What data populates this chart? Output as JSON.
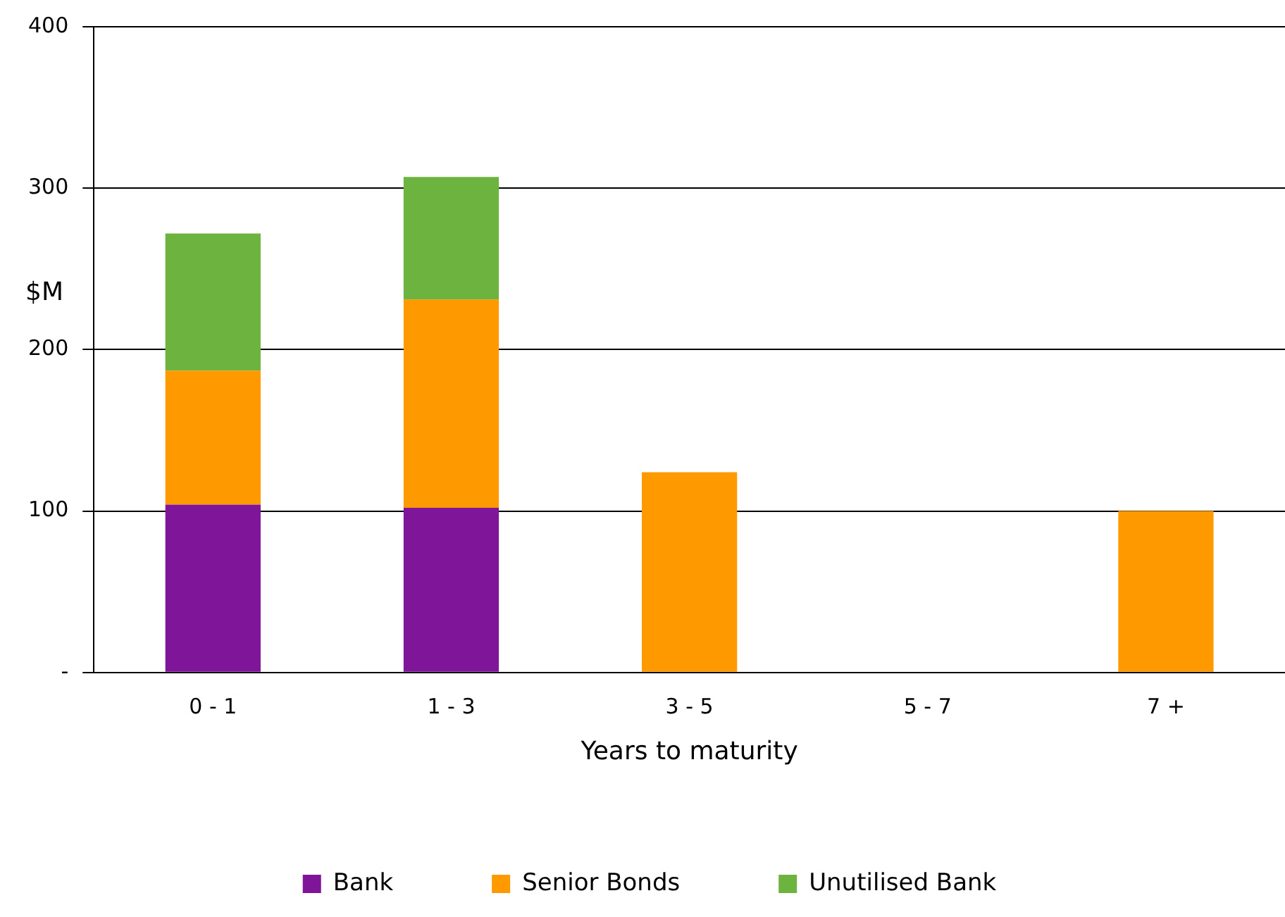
{
  "chart_data": {
    "type": "bar",
    "stacked": true,
    "xlabel": "Years to maturity",
    "ylabel": "$M",
    "categories": [
      "0 - 1",
      "1 - 3",
      "3 - 5",
      "5 - 7",
      "7 +"
    ],
    "series": [
      {
        "name": "Bank",
        "color": "#7f1599",
        "values": [
          104,
          102,
          null,
          null,
          null
        ]
      },
      {
        "name": "Senior Bonds",
        "color": "#ff9900",
        "values": [
          83,
          129,
          124,
          null,
          100
        ]
      },
      {
        "name": "Unutilised Bank",
        "color": "#6db33f",
        "values": [
          85,
          76,
          null,
          null,
          null
        ]
      }
    ],
    "ylim": [
      0,
      400
    ],
    "yticks": [
      {
        "value": 0,
        "label": "-"
      },
      100,
      200,
      300,
      400
    ],
    "grid": "y",
    "legend": "bottom"
  }
}
